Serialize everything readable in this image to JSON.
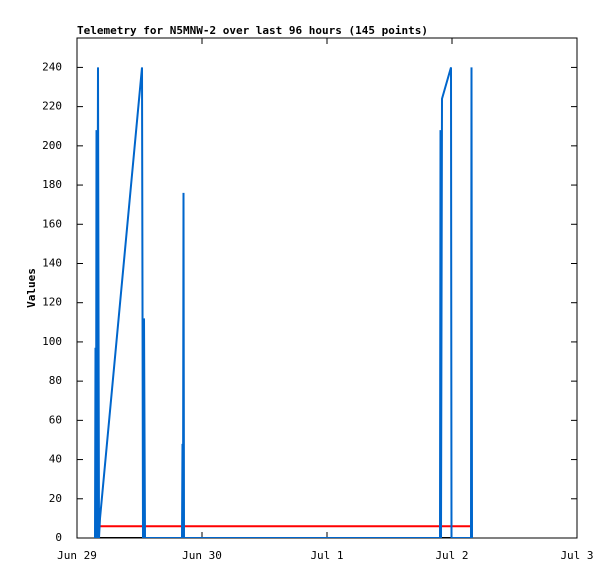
{
  "chart_data": {
    "type": "line",
    "title": "Telemetry for N5MNW-2 over last 96 hours (145 points)",
    "y_label": "Values",
    "xlim": [
      0,
      4
    ],
    "xticks": [
      {
        "value": 0,
        "label": "Jun 29"
      },
      {
        "value": 1,
        "label": "Jun 30"
      },
      {
        "value": 2,
        "label": "Jul 1"
      },
      {
        "value": 3,
        "label": "Jul 2"
      },
      {
        "value": 4,
        "label": "Jul 3"
      }
    ],
    "ylim": [
      0,
      255
    ],
    "yticks": [
      0,
      20,
      40,
      60,
      80,
      100,
      120,
      140,
      160,
      180,
      200,
      220,
      240
    ],
    "series": [
      {
        "color": "#000000",
        "x": [
          0.144,
          3.16
        ],
        "values": [
          0,
          0
        ]
      },
      {
        "color": "#ff0000",
        "x": [
          0.184,
          3.152
        ],
        "values": [
          6,
          6
        ]
      },
      {
        "color": "#0066cc",
        "x": [
          0.144,
          0.148,
          0.152,
          0.156,
          0.16,
          0.168,
          0.176,
          0.184,
          0.52,
          0.528,
          0.536,
          0.544,
          0.84,
          0.844,
          0.848,
          0.852,
          0.856,
          2.904,
          2.908,
          2.912,
          2.916,
          2.92,
          2.992,
          2.996,
          3.152,
          3.156,
          3.16
        ],
        "values": [
          0,
          97,
          0,
          208,
          0,
          240,
          0,
          10,
          240,
          0,
          112,
          0,
          0,
          48,
          0,
          176,
          0,
          0,
          208,
          0,
          112,
          224,
          240,
          0,
          0,
          240,
          0
        ]
      }
    ]
  }
}
